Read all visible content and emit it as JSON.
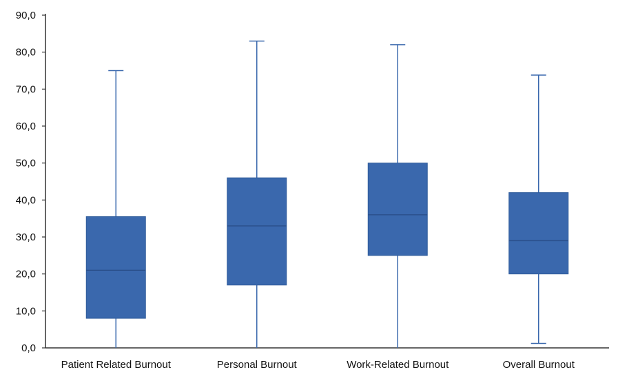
{
  "chart_data": {
    "type": "boxplot",
    "y_ticks": [
      "0,0",
      "10,0",
      "20,0",
      "30,0",
      "40,0",
      "50,0",
      "60,0",
      "70,0",
      "80,0",
      "90,0"
    ],
    "ylim": [
      0,
      90
    ],
    "grid": false,
    "colors": {
      "box_fill": "#3a68ad",
      "box_stroke": "#2f5b9a",
      "whisker": "#3a68ad",
      "axis": "#333333"
    },
    "series": [
      {
        "category": "Patient Related Burnout",
        "min": 0,
        "q1": 8,
        "median": 21,
        "q3": 35.5,
        "max": 75
      },
      {
        "category": "Personal Burnout",
        "min": 0,
        "q1": 17,
        "median": 33,
        "q3": 46,
        "max": 83
      },
      {
        "category": "Work-Related Burnout",
        "min": 0,
        "q1": 25,
        "median": 36,
        "q3": 50,
        "max": 82
      },
      {
        "category": "Overall Burnout",
        "min": 1.2,
        "q1": 20,
        "median": 29,
        "q3": 42,
        "max": 73.8
      }
    ]
  }
}
